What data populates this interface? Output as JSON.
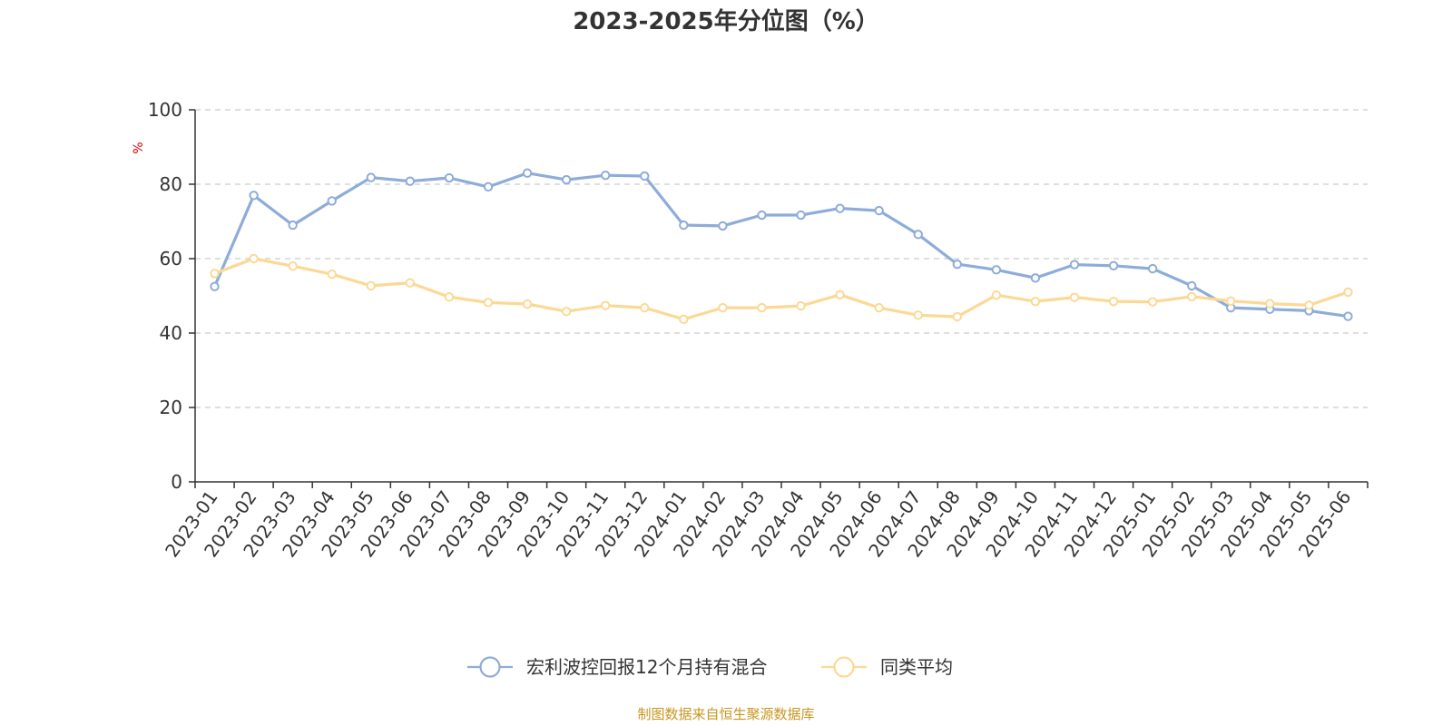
{
  "chart_data": {
    "type": "line",
    "title": "2023-2025年分位图（%）",
    "ylabel": "%",
    "ylim": [
      0,
      100
    ],
    "yticks": [
      "0",
      "20",
      "40",
      "60",
      "80",
      "100"
    ],
    "grid": true,
    "legend_position": "bottom",
    "categories": [
      "2023-01",
      "2023-02",
      "2023-03",
      "2023-04",
      "2023-05",
      "2023-06",
      "2023-07",
      "2023-08",
      "2023-09",
      "2023-10",
      "2023-11",
      "2023-12",
      "2024-01",
      "2024-02",
      "2024-03",
      "2024-04",
      "2024-05",
      "2024-06",
      "2024-07",
      "2024-08",
      "2024-09",
      "2024-10",
      "2024-11",
      "2024-12",
      "2025-01",
      "2025-02",
      "2025-03",
      "2025-04",
      "2025-05",
      "2025-06"
    ],
    "series": [
      {
        "name": "宏利波控回报12个月持有混合",
        "color": "#8eacd9",
        "values": [
          52.5,
          77.0,
          69.0,
          75.5,
          81.8,
          80.8,
          81.7,
          79.3,
          83.0,
          81.2,
          82.4,
          82.2,
          69.0,
          68.8,
          71.7,
          71.7,
          73.5,
          72.9,
          66.5,
          58.5,
          57.0,
          54.8,
          58.4,
          58.1,
          57.3,
          52.7,
          46.8,
          46.4,
          46.0,
          44.5
        ]
      },
      {
        "name": "同类平均",
        "color": "#fbd995",
        "values": [
          56.0,
          60.0,
          58.0,
          55.8,
          52.7,
          53.5,
          49.7,
          48.2,
          47.8,
          45.8,
          47.4,
          46.8,
          43.7,
          46.8,
          46.8,
          47.3,
          50.3,
          46.8,
          44.8,
          44.4,
          50.2,
          48.5,
          49.6,
          48.5,
          48.4,
          49.8,
          48.6,
          47.9,
          47.5,
          51.0
        ]
      }
    ]
  },
  "footer": {
    "source": "制图数据来自恒生聚源数据库"
  }
}
